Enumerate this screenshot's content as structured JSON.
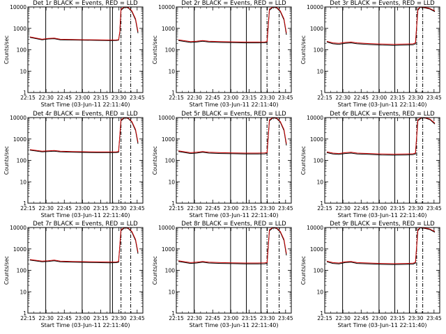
{
  "figure": {
    "background": "#ffffff",
    "axis_color": "#000000",
    "events_color": "#000000",
    "lld_color": "#cc0000",
    "x_tick_labels": [
      "22:15",
      "22:30",
      "22:45",
      "23:00",
      "23:15",
      "23:30",
      "23:45"
    ],
    "y_tick_labels": [
      "1",
      "10",
      "100",
      "1000",
      "10000"
    ],
    "ylabel": "Counts/sec",
    "xlabel": "Start Time (03-Jun-11 22:11:40)"
  },
  "chart_data": [
    {
      "type": "line",
      "title": "Det 1r BLACK = Events, RED = LLD",
      "xlabel": "Start Time (03-Jun-11 22:11:40)",
      "ylabel": "Counts/sec",
      "x_unit": "minutes after 22:11:40",
      "xlim": [
        3.3,
        98
      ],
      "ylim": [
        1,
        10000
      ],
      "y_scale": "log",
      "events_x": [
        5,
        15,
        20,
        25,
        30,
        40,
        50,
        60,
        70,
        76,
        78,
        79,
        80,
        83,
        86,
        89,
        92,
        94
      ],
      "events_y": [
        380,
        290,
        320,
        330,
        290,
        285,
        280,
        275,
        270,
        272,
        280,
        600,
        7000,
        9800,
        9000,
        6000,
        2500,
        600
      ],
      "lld_x": [
        5,
        15,
        20,
        25,
        30,
        40,
        50,
        60,
        70,
        76,
        78,
        79,
        80,
        83,
        86,
        89,
        92,
        94
      ],
      "lld_y": [
        400,
        310,
        340,
        350,
        310,
        300,
        295,
        290,
        285,
        288,
        295,
        700,
        8000,
        10000,
        9500,
        6500,
        2800,
        700
      ],
      "solid_markers_x": [
        18,
        48,
        71,
        73
      ],
      "dashdot_markers_x": [
        80,
        88
      ]
    },
    {
      "type": "line",
      "title": "Det 2r BLACK = Events, RED = LLD",
      "xlabel": "Start Time (03-Jun-11 22:11:40)",
      "ylabel": "Counts/sec",
      "x_unit": "minutes after 22:11:40",
      "xlim": [
        3.3,
        98
      ],
      "ylim": [
        1,
        10000
      ],
      "y_scale": "log",
      "events_x": [
        5,
        15,
        20,
        25,
        30,
        40,
        50,
        60,
        70,
        76,
        78,
        80,
        83,
        86,
        89,
        92,
        94
      ],
      "events_y": [
        270,
        220,
        230,
        250,
        230,
        220,
        215,
        210,
        210,
        212,
        220,
        7000,
        9800,
        9000,
        6000,
        2500,
        500
      ],
      "lld_x": [
        5,
        15,
        20,
        25,
        30,
        40,
        50,
        60,
        70,
        76,
        78,
        80,
        83,
        86,
        89,
        92,
        94
      ],
      "lld_y": [
        290,
        240,
        250,
        270,
        250,
        240,
        235,
        230,
        230,
        232,
        240,
        8000,
        10000,
        9500,
        6500,
        2800,
        600
      ],
      "solid_markers_x": [
        18,
        48,
        61,
        73
      ],
      "dashdot_markers_x": [
        78,
        88
      ]
    },
    {
      "type": "line",
      "title": "Det 3r BLACK = Events, RED = LLD",
      "xlabel": "Start Time (03-Jun-11 22:11:40)",
      "ylabel": "Counts/sec",
      "x_unit": "minutes after 22:11:40",
      "xlim": [
        3.3,
        98
      ],
      "ylim": [
        1,
        10000
      ],
      "y_scale": "log",
      "events_x": [
        5,
        10,
        15,
        20,
        25,
        30,
        40,
        50,
        60,
        70,
        76,
        78,
        80,
        82,
        86,
        90,
        94
      ],
      "events_y": [
        230,
        190,
        180,
        200,
        210,
        190,
        175,
        165,
        160,
        165,
        170,
        190,
        7000,
        9800,
        9000,
        8000,
        6000
      ],
      "lld_x": [
        5,
        10,
        15,
        20,
        25,
        30,
        40,
        50,
        60,
        70,
        76,
        78,
        80,
        82,
        86,
        90,
        94
      ],
      "lld_y": [
        250,
        210,
        200,
        220,
        230,
        210,
        195,
        185,
        180,
        185,
        190,
        210,
        8000,
        10000,
        9500,
        8500,
        6500
      ],
      "solid_markers_x": [
        18,
        48,
        61,
        73
      ],
      "dashdot_markers_x": [
        79,
        84
      ]
    },
    {
      "type": "line",
      "title": "Det 4r BLACK = Events, RED = LLD",
      "xlabel": "Start Time (03-Jun-11 22:11:40)",
      "ylabel": "Counts/sec",
      "x_unit": "minutes after 22:11:40",
      "xlim": [
        3.3,
        98
      ],
      "ylim": [
        1,
        10000
      ],
      "y_scale": "log",
      "events_x": [
        5,
        15,
        20,
        25,
        30,
        40,
        50,
        60,
        70,
        76,
        78,
        80,
        83,
        86,
        89,
        92,
        94
      ],
      "events_y": [
        300,
        250,
        260,
        270,
        250,
        240,
        235,
        230,
        230,
        232,
        240,
        7000,
        9800,
        9000,
        6000,
        2500,
        600
      ],
      "lld_x": [
        5,
        15,
        20,
        25,
        30,
        40,
        50,
        60,
        70,
        76,
        78,
        80,
        83,
        86,
        89,
        92,
        94
      ],
      "lld_y": [
        320,
        270,
        280,
        290,
        270,
        260,
        255,
        250,
        250,
        252,
        260,
        8000,
        10000,
        9500,
        6500,
        2800,
        700
      ],
      "solid_markers_x": [
        18,
        48,
        71,
        73
      ],
      "dashdot_markers_x": [
        80,
        88
      ]
    },
    {
      "type": "line",
      "title": "Det 5r BLACK = Events, RED = LLD",
      "xlabel": "Start Time (03-Jun-11 22:11:40)",
      "ylabel": "Counts/sec",
      "x_unit": "minutes after 22:11:40",
      "xlim": [
        3.3,
        98
      ],
      "ylim": [
        1,
        10000
      ],
      "y_scale": "log",
      "events_x": [
        5,
        15,
        20,
        25,
        30,
        40,
        50,
        60,
        70,
        76,
        78,
        80,
        83,
        86,
        89,
        92,
        94
      ],
      "events_y": [
        260,
        210,
        220,
        240,
        220,
        210,
        205,
        200,
        200,
        202,
        210,
        7000,
        9800,
        9000,
        6000,
        2500,
        500
      ],
      "lld_x": [
        5,
        15,
        20,
        25,
        30,
        40,
        50,
        60,
        70,
        76,
        78,
        80,
        83,
        86,
        89,
        92,
        94
      ],
      "lld_y": [
        280,
        230,
        240,
        260,
        240,
        230,
        225,
        220,
        220,
        222,
        230,
        8000,
        10000,
        9500,
        6500,
        2800,
        600
      ],
      "solid_markers_x": [
        18,
        48,
        61,
        73
      ],
      "dashdot_markers_x": [
        78,
        88
      ]
    },
    {
      "type": "line",
      "title": "Det 6r BLACK = Events, RED = LLD",
      "xlabel": "Start Time (03-Jun-11 22:11:40)",
      "ylabel": "Counts/sec",
      "x_unit": "minutes after 22:11:40",
      "xlim": [
        3.3,
        98
      ],
      "ylim": [
        1,
        10000
      ],
      "y_scale": "log",
      "events_x": [
        5,
        10,
        15,
        20,
        25,
        30,
        40,
        50,
        60,
        70,
        76,
        78,
        80,
        83,
        86,
        90,
        94
      ],
      "events_y": [
        230,
        200,
        190,
        210,
        220,
        200,
        190,
        180,
        175,
        180,
        185,
        200,
        7000,
        9800,
        9500,
        8000,
        5000
      ],
      "lld_x": [
        5,
        10,
        15,
        20,
        25,
        30,
        40,
        50,
        60,
        70,
        76,
        78,
        80,
        83,
        86,
        90,
        94
      ],
      "lld_y": [
        250,
        220,
        210,
        230,
        240,
        220,
        210,
        200,
        195,
        200,
        205,
        220,
        8000,
        10000,
        9800,
        8500,
        5500
      ],
      "solid_markers_x": [
        18,
        48,
        61,
        73
      ],
      "dashdot_markers_x": [
        79,
        84
      ]
    },
    {
      "type": "line",
      "title": "Det 7r BLACK = Events, RED = LLD",
      "xlabel": "Start Time (03-Jun-11 22:11:40)",
      "ylabel": "Counts/sec",
      "x_unit": "minutes after 22:11:40",
      "xlim": [
        3.3,
        98
      ],
      "ylim": [
        1,
        10000
      ],
      "y_scale": "log",
      "events_x": [
        5,
        15,
        20,
        25,
        30,
        40,
        50,
        60,
        70,
        76,
        78,
        80,
        83,
        86,
        89,
        92,
        94
      ],
      "events_y": [
        300,
        250,
        260,
        280,
        250,
        240,
        235,
        230,
        225,
        228,
        240,
        7000,
        9800,
        9000,
        6000,
        2500,
        600
      ],
      "lld_x": [
        5,
        15,
        20,
        25,
        30,
        40,
        50,
        60,
        70,
        76,
        78,
        80,
        83,
        86,
        89,
        92,
        94
      ],
      "lld_y": [
        320,
        270,
        280,
        300,
        270,
        260,
        255,
        250,
        245,
        248,
        260,
        8000,
        10000,
        9500,
        6500,
        2800,
        700
      ],
      "solid_markers_x": [
        18,
        48,
        71,
        73
      ],
      "dashdot_markers_x": [
        80,
        88
      ]
    },
    {
      "type": "line",
      "title": "Det 8r BLACK = Events, RED = LLD",
      "xlabel": "Start Time (03-Jun-11 22:11:40)",
      "ylabel": "Counts/sec",
      "x_unit": "minutes after 22:11:40",
      "xlim": [
        3.3,
        98
      ],
      "ylim": [
        1,
        10000
      ],
      "y_scale": "log",
      "events_x": [
        5,
        15,
        20,
        25,
        30,
        40,
        50,
        60,
        70,
        76,
        78,
        80,
        83,
        86,
        89,
        92,
        94
      ],
      "events_y": [
        260,
        210,
        220,
        240,
        220,
        210,
        205,
        200,
        200,
        202,
        210,
        7000,
        9800,
        9000,
        6000,
        2500,
        500
      ],
      "lld_x": [
        5,
        15,
        20,
        25,
        30,
        40,
        50,
        60,
        70,
        76,
        78,
        80,
        83,
        86,
        89,
        92,
        94
      ],
      "lld_y": [
        280,
        230,
        240,
        260,
        240,
        230,
        225,
        220,
        220,
        222,
        230,
        8000,
        10000,
        9500,
        6500,
        2800,
        600
      ],
      "solid_markers_x": [
        18,
        48,
        61,
        73
      ],
      "dashdot_markers_x": [
        78,
        88
      ]
    },
    {
      "type": "line",
      "title": "Det 9r BLACK = Events, RED = LLD",
      "xlabel": "Start Time (03-Jun-11 22:11:40)",
      "ylabel": "Counts/sec",
      "x_unit": "minutes after 22:11:40",
      "xlim": [
        3.3,
        98
      ],
      "ylim": [
        1,
        10000
      ],
      "y_scale": "log",
      "events_x": [
        5,
        10,
        15,
        20,
        25,
        30,
        40,
        50,
        60,
        70,
        76,
        78,
        80,
        82,
        86,
        90,
        94
      ],
      "events_y": [
        250,
        210,
        200,
        230,
        240,
        210,
        200,
        190,
        185,
        190,
        195,
        220,
        7000,
        9800,
        9000,
        8000,
        6000
      ],
      "lld_x": [
        5,
        10,
        15,
        20,
        25,
        30,
        40,
        50,
        60,
        70,
        76,
        78,
        80,
        82,
        86,
        90,
        94
      ],
      "lld_y": [
        270,
        230,
        220,
        250,
        260,
        230,
        220,
        210,
        205,
        210,
        215,
        240,
        8000,
        10000,
        9500,
        8500,
        6500
      ],
      "solid_markers_x": [
        18,
        48,
        61,
        73
      ],
      "dashdot_markers_x": [
        79,
        84
      ]
    }
  ]
}
